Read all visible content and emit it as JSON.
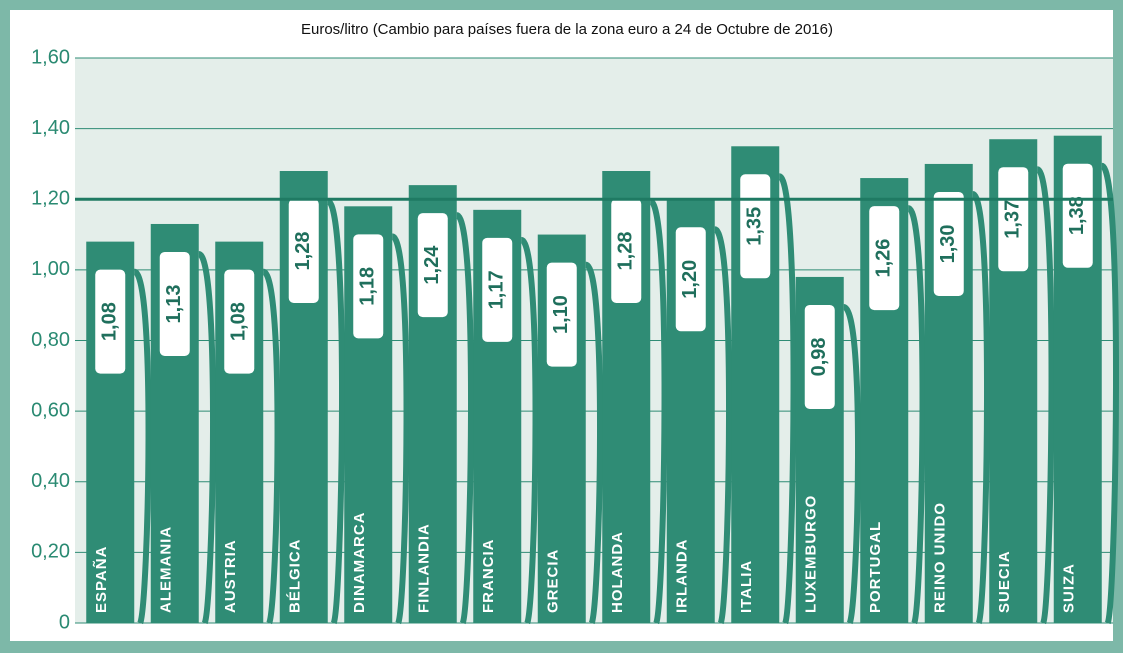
{
  "chart_data": {
    "type": "bar",
    "title": "Euros/litro (Cambio para países fuera de la zona euro a 24 de Octubre de 2016)",
    "categories": [
      "ESPAÑA",
      "ALEMANIA",
      "AUSTRIA",
      "BÉLGICA",
      "DINAMARCA",
      "FINLANDIA",
      "FRANCIA",
      "GRECIA",
      "HOLANDA",
      "IRLANDA",
      "ITALIA",
      "LUXEMBURGO",
      "PORTUGAL",
      "REINO UNIDO",
      "SUECIA",
      "SUIZA"
    ],
    "values": [
      1.08,
      1.13,
      1.08,
      1.28,
      1.18,
      1.24,
      1.17,
      1.1,
      1.28,
      1.2,
      1.35,
      0.98,
      1.26,
      1.3,
      1.37,
      1.38
    ],
    "value_labels": [
      "1,08",
      "1,13",
      "1,08",
      "1,28",
      "1,18",
      "1,24",
      "1,17",
      "1,10",
      "1,28",
      "1,20",
      "1,35",
      "0,98",
      "1,26",
      "1,30",
      "1,37",
      "1,38"
    ],
    "color": "#2f8c75",
    "ylim": [
      0,
      1.6
    ],
    "yticks": [
      0,
      {
        "value": 0.2,
        "label": "0,20"
      },
      {
        "value": 0.4,
        "label": "0,40"
      },
      {
        "value": 0.6,
        "label": "0,60"
      },
      {
        "value": 0.8,
        "label": "0,80"
      },
      {
        "value": 1.0,
        "label": "1,00"
      },
      {
        "value": 1.2,
        "label": "1,20"
      },
      {
        "value": 1.4,
        "label": "1,40"
      },
      {
        "value": 1.6,
        "label": "1,60"
      }
    ],
    "reference_line": 1.2,
    "grid": true
  }
}
